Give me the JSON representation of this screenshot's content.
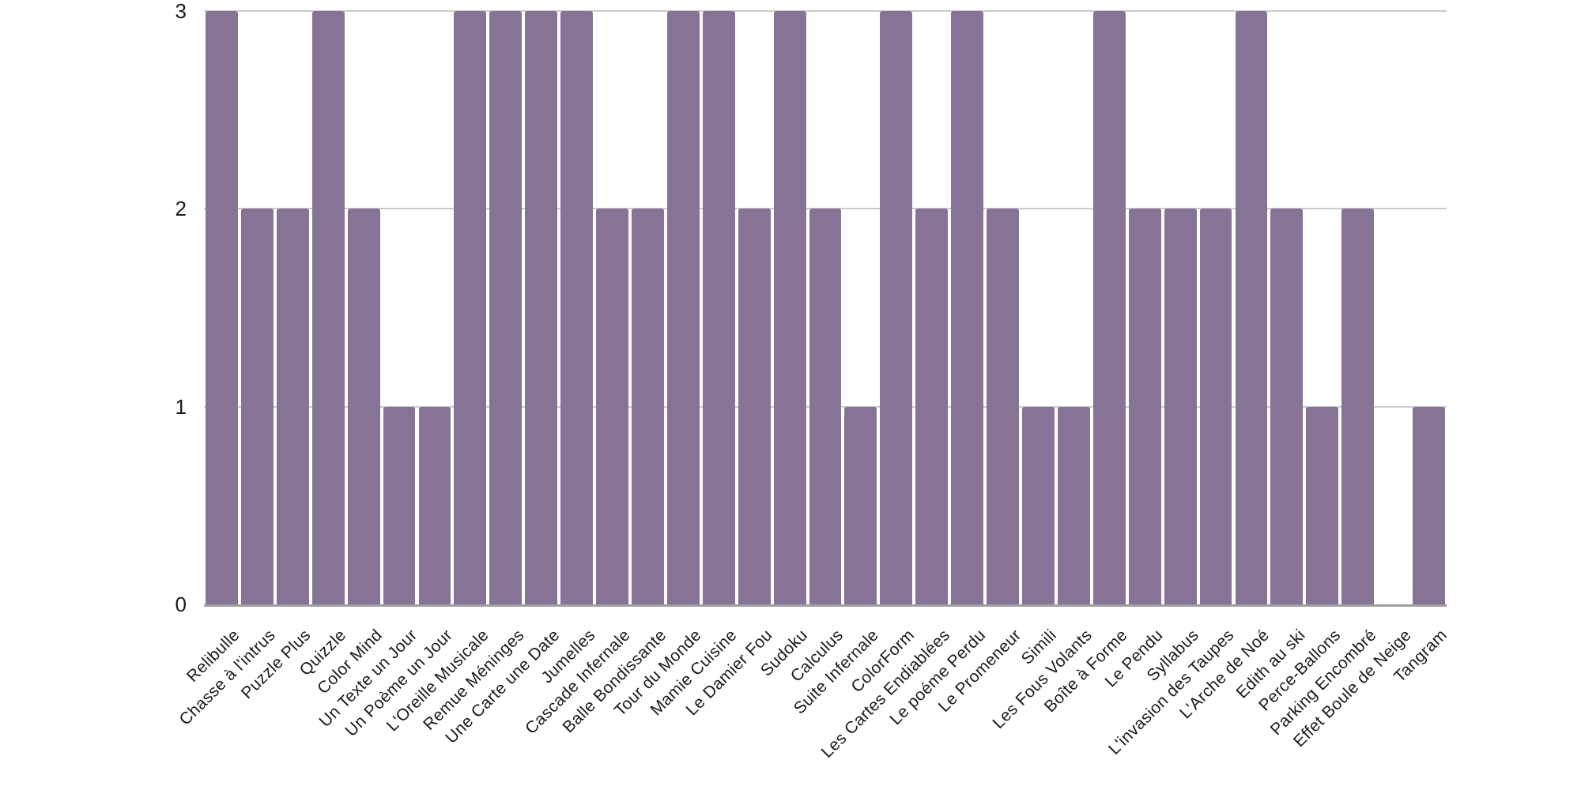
{
  "chart_data": {
    "type": "bar",
    "title": "",
    "xlabel": "",
    "ylabel": "",
    "categories": [
      "Relibulle",
      "Chasse à l'intrus",
      "Puzzle Plus",
      "Quizzle",
      "Color Mind",
      "Un Texte un Jour",
      "Un Poème un Jour",
      "L'Oreille Musicale",
      "Remue Méninges",
      "Une Carte une Date",
      "Jumelles",
      "Cascade Infernale",
      "Balle Bondissante",
      "Tour du Monde",
      "Mamie Cuisine",
      "Le Damier Fou",
      "Sudoku",
      "Calculus",
      "Suite Infernale",
      "ColorForm",
      "Les Cartes Endiablées",
      "Le poéme Perdu",
      "Le Promeneur",
      "Simili",
      "Les Fous Volants",
      "Boîte à Forme",
      "Le Pendu",
      "Syllabus",
      "L'invasion des Taupes",
      "L'Arche de Noé",
      "Edith au ski",
      "Perce-Ballons",
      "Parking Encombré",
      "Effet Boule de Neige",
      "Tangram"
    ],
    "values": [
      3,
      2,
      2,
      3,
      2,
      1,
      1,
      3,
      3,
      3,
      3,
      2,
      2,
      3,
      3,
      2,
      3,
      2,
      1,
      3,
      2,
      3,
      2,
      1,
      1,
      3,
      2,
      2,
      2,
      3,
      2,
      1,
      2,
      0,
      1
    ],
    "ylim": [
      0,
      3
    ],
    "yticks": [
      0,
      1,
      2,
      3
    ],
    "y_tick_labels": [
      "0",
      "1",
      "2",
      "3"
    ],
    "x_tick_rotation_deg": 45,
    "grid": true,
    "legend_position": "none",
    "colors": {
      "bar": "#877396",
      "gridline": "#cbcbcb",
      "axis_line": "#9e9e9e",
      "tick_label": "#1a1a1a",
      "background": "#ffffff"
    }
  }
}
